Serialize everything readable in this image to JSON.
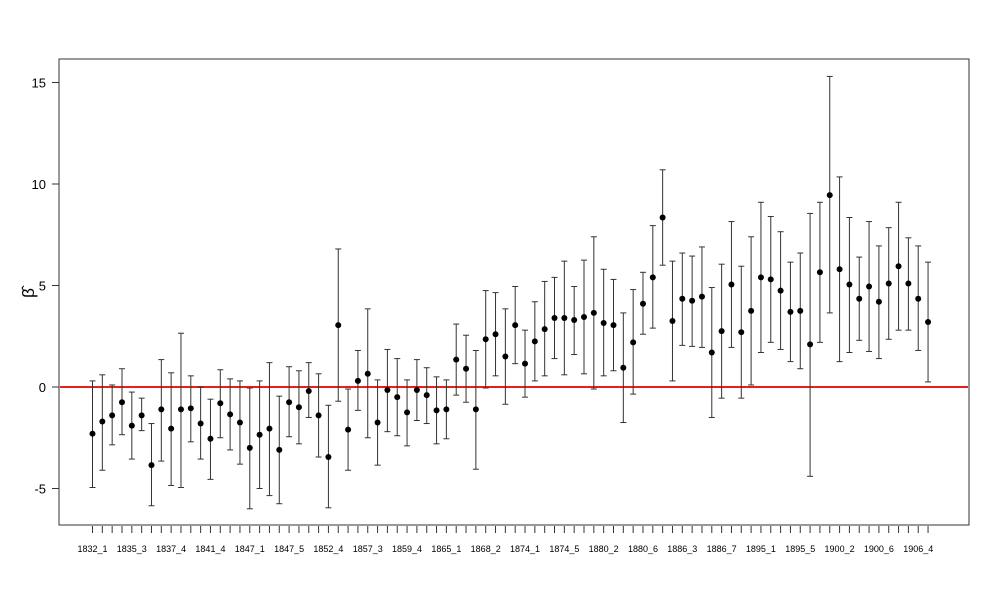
{
  "chart_data": {
    "type": "scatter",
    "title": "",
    "xlabel": "",
    "ylabel": "β̂",
    "ylim": [
      -6.9,
      16.3
    ],
    "y_ticks": [
      -5,
      0,
      5,
      10,
      15
    ],
    "reference_line": {
      "y": 0,
      "color": "#e8201a"
    },
    "grid": false,
    "legend": "none",
    "point_color": "#000000",
    "errorbar_color": "#333333",
    "tick_labels": [
      {
        "index": 1,
        "label": "1832_1"
      },
      {
        "index": 5,
        "label": "1835_3"
      },
      {
        "index": 9,
        "label": "1837_4"
      },
      {
        "index": 13,
        "label": "1841_4"
      },
      {
        "index": 17,
        "label": "1847_1"
      },
      {
        "index": 21,
        "label": "1847_5"
      },
      {
        "index": 25,
        "label": "1852_4"
      },
      {
        "index": 29,
        "label": "1857_3"
      },
      {
        "index": 33,
        "label": "1859_4"
      },
      {
        "index": 37,
        "label": "1865_1"
      },
      {
        "index": 41,
        "label": "1868_2"
      },
      {
        "index": 45,
        "label": "1874_1"
      },
      {
        "index": 49,
        "label": "1874_5"
      },
      {
        "index": 53,
        "label": "1880_2"
      },
      {
        "index": 57,
        "label": "1880_6"
      },
      {
        "index": 61,
        "label": "1886_3"
      },
      {
        "index": 65,
        "label": "1886_7"
      },
      {
        "index": 69,
        "label": "1895_1"
      },
      {
        "index": 73,
        "label": "1895_5"
      },
      {
        "index": 77,
        "label": "1900_2"
      },
      {
        "index": 81,
        "label": "1900_6"
      },
      {
        "index": 85,
        "label": "1906_4"
      }
    ],
    "points": [
      {
        "i": 1,
        "y": -2.3,
        "lo": -4.95,
        "hi": 0.3
      },
      {
        "i": 2,
        "y": -1.7,
        "lo": -4.1,
        "hi": 0.6
      },
      {
        "i": 3,
        "y": -1.4,
        "lo": -2.85,
        "hi": 0.1
      },
      {
        "i": 4,
        "y": -0.75,
        "lo": -2.35,
        "hi": 0.9
      },
      {
        "i": 5,
        "y": -1.9,
        "lo": -3.55,
        "hi": -0.25
      },
      {
        "i": 6,
        "y": -1.4,
        "lo": -2.15,
        "hi": -0.55
      },
      {
        "i": 7,
        "y": -3.85,
        "lo": -5.85,
        "hi": -1.8
      },
      {
        "i": 8,
        "y": -1.1,
        "lo": -3.65,
        "hi": 1.35
      },
      {
        "i": 9,
        "y": -2.05,
        "lo": -4.85,
        "hi": 0.7
      },
      {
        "i": 10,
        "y": -1.1,
        "lo": -4.95,
        "hi": 2.65
      },
      {
        "i": 11,
        "y": -1.05,
        "lo": -2.7,
        "hi": 0.55
      },
      {
        "i": 12,
        "y": -1.8,
        "lo": -3.55,
        "hi": 0.0
      },
      {
        "i": 13,
        "y": -2.55,
        "lo": -4.55,
        "hi": -0.6
      },
      {
        "i": 14,
        "y": -0.8,
        "lo": -2.5,
        "hi": 0.85
      },
      {
        "i": 15,
        "y": -1.35,
        "lo": -3.1,
        "hi": 0.4
      },
      {
        "i": 16,
        "y": -1.75,
        "lo": -3.8,
        "hi": 0.3
      },
      {
        "i": 17,
        "y": -3.0,
        "lo": -6.0,
        "hi": -0.05
      },
      {
        "i": 18,
        "y": -2.35,
        "lo": -5.0,
        "hi": 0.3
      },
      {
        "i": 19,
        "y": -2.05,
        "lo": -5.35,
        "hi": 1.2
      },
      {
        "i": 20,
        "y": -3.1,
        "lo": -5.75,
        "hi": -0.45
      },
      {
        "i": 21,
        "y": -0.75,
        "lo": -2.45,
        "hi": 1.0
      },
      {
        "i": 22,
        "y": -1.0,
        "lo": -2.8,
        "hi": 0.8
      },
      {
        "i": 23,
        "y": -0.2,
        "lo": -1.5,
        "hi": 1.2
      },
      {
        "i": 24,
        "y": -1.4,
        "lo": -3.45,
        "hi": 0.65
      },
      {
        "i": 25,
        "y": -3.45,
        "lo": -5.95,
        "hi": -0.9
      },
      {
        "i": 26,
        "y": 3.05,
        "lo": -0.7,
        "hi": 6.8
      },
      {
        "i": 27,
        "y": -2.1,
        "lo": -4.1,
        "hi": -0.1
      },
      {
        "i": 28,
        "y": 0.3,
        "lo": -1.15,
        "hi": 1.8
      },
      {
        "i": 29,
        "y": 0.65,
        "lo": -2.5,
        "hi": 3.85
      },
      {
        "i": 30,
        "y": -1.75,
        "lo": -3.85,
        "hi": 0.35
      },
      {
        "i": 31,
        "y": -0.15,
        "lo": -2.2,
        "hi": 1.85
      },
      {
        "i": 32,
        "y": -0.5,
        "lo": -2.4,
        "hi": 1.4
      },
      {
        "i": 33,
        "y": -1.25,
        "lo": -2.9,
        "hi": 0.35
      },
      {
        "i": 34,
        "y": -0.15,
        "lo": -1.65,
        "hi": 1.35
      },
      {
        "i": 35,
        "y": -0.4,
        "lo": -1.8,
        "hi": 0.95
      },
      {
        "i": 36,
        "y": -1.15,
        "lo": -2.8,
        "hi": 0.5
      },
      {
        "i": 37,
        "y": -1.1,
        "lo": -2.55,
        "hi": 0.35
      },
      {
        "i": 38,
        "y": 1.35,
        "lo": -0.4,
        "hi": 3.1
      },
      {
        "i": 39,
        "y": 0.9,
        "lo": -0.75,
        "hi": 2.55
      },
      {
        "i": 40,
        "y": -1.1,
        "lo": -4.05,
        "hi": 1.8
      },
      {
        "i": 41,
        "y": 2.35,
        "lo": -0.05,
        "hi": 4.75
      },
      {
        "i": 42,
        "y": 2.6,
        "lo": 0.55,
        "hi": 4.65
      },
      {
        "i": 43,
        "y": 1.5,
        "lo": -0.85,
        "hi": 3.85
      },
      {
        "i": 44,
        "y": 3.05,
        "lo": 1.15,
        "hi": 4.95
      },
      {
        "i": 45,
        "y": 1.15,
        "lo": -0.5,
        "hi": 2.8
      },
      {
        "i": 46,
        "y": 2.25,
        "lo": 0.3,
        "hi": 4.2
      },
      {
        "i": 47,
        "y": 2.85,
        "lo": 0.55,
        "hi": 5.2
      },
      {
        "i": 48,
        "y": 3.4,
        "lo": 1.4,
        "hi": 5.4
      },
      {
        "i": 49,
        "y": 3.4,
        "lo": 0.6,
        "hi": 6.2
      },
      {
        "i": 50,
        "y": 3.3,
        "lo": 1.6,
        "hi": 4.95
      },
      {
        "i": 51,
        "y": 3.45,
        "lo": 0.65,
        "hi": 6.25
      },
      {
        "i": 52,
        "y": 3.65,
        "lo": -0.1,
        "hi": 7.4
      },
      {
        "i": 53,
        "y": 3.15,
        "lo": 0.55,
        "hi": 5.8
      },
      {
        "i": 54,
        "y": 3.05,
        "lo": 0.8,
        "hi": 5.3
      },
      {
        "i": 55,
        "y": 0.95,
        "lo": -1.75,
        "hi": 3.65
      },
      {
        "i": 56,
        "y": 2.2,
        "lo": -0.35,
        "hi": 4.8
      },
      {
        "i": 57,
        "y": 4.1,
        "lo": 2.6,
        "hi": 5.65
      },
      {
        "i": 58,
        "y": 5.4,
        "lo": 2.9,
        "hi": 7.95
      },
      {
        "i": 59,
        "y": 8.35,
        "lo": 6.0,
        "hi": 10.7
      },
      {
        "i": 60,
        "y": 3.25,
        "lo": 0.3,
        "hi": 6.2
      },
      {
        "i": 61,
        "y": 4.35,
        "lo": 2.05,
        "hi": 6.6
      },
      {
        "i": 62,
        "y": 4.25,
        "lo": 2.0,
        "hi": 6.45
      },
      {
        "i": 63,
        "y": 4.45,
        "lo": 1.95,
        "hi": 6.9
      },
      {
        "i": 64,
        "y": 1.7,
        "lo": -1.5,
        "hi": 4.9
      },
      {
        "i": 65,
        "y": 2.75,
        "lo": -0.55,
        "hi": 6.05
      },
      {
        "i": 66,
        "y": 5.05,
        "lo": 1.95,
        "hi": 8.15
      },
      {
        "i": 67,
        "y": 2.7,
        "lo": -0.55,
        "hi": 5.95
      },
      {
        "i": 68,
        "y": 3.75,
        "lo": 0.1,
        "hi": 7.4
      },
      {
        "i": 69,
        "y": 5.4,
        "lo": 1.7,
        "hi": 9.1
      },
      {
        "i": 70,
        "y": 5.3,
        "lo": 2.2,
        "hi": 8.4
      },
      {
        "i": 71,
        "y": 4.75,
        "lo": 1.85,
        "hi": 7.65
      },
      {
        "i": 72,
        "y": 3.7,
        "lo": 1.25,
        "hi": 6.15
      },
      {
        "i": 73,
        "y": 3.75,
        "lo": 0.9,
        "hi": 6.6
      },
      {
        "i": 74,
        "y": 2.1,
        "lo": -4.4,
        "hi": 8.55
      },
      {
        "i": 75,
        "y": 5.65,
        "lo": 2.2,
        "hi": 9.1
      },
      {
        "i": 76,
        "y": 9.45,
        "lo": 3.65,
        "hi": 15.3
      },
      {
        "i": 77,
        "y": 5.8,
        "lo": 1.25,
        "hi": 10.35
      },
      {
        "i": 78,
        "y": 5.05,
        "lo": 1.7,
        "hi": 8.35
      },
      {
        "i": 79,
        "y": 4.35,
        "lo": 2.3,
        "hi": 6.4
      },
      {
        "i": 80,
        "y": 4.95,
        "lo": 1.75,
        "hi": 8.15
      },
      {
        "i": 81,
        "y": 4.2,
        "lo": 1.4,
        "hi": 6.95
      },
      {
        "i": 82,
        "y": 5.1,
        "lo": 2.35,
        "hi": 7.85
      },
      {
        "i": 83,
        "y": 5.95,
        "lo": 2.8,
        "hi": 9.1
      },
      {
        "i": 84,
        "y": 5.1,
        "lo": 2.8,
        "hi": 7.35
      },
      {
        "i": 85,
        "y": 4.35,
        "lo": 1.8,
        "hi": 6.95
      },
      {
        "i": 86,
        "y": 3.2,
        "lo": 0.25,
        "hi": 6.15
      }
    ]
  }
}
